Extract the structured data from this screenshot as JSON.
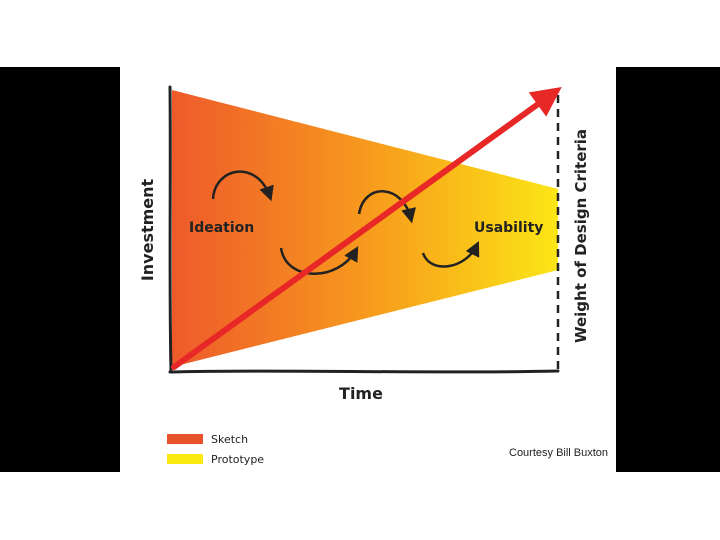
{
  "diagram": {
    "y_axis_label": "Investment",
    "x_axis_label": "Time",
    "right_axis_label": "Weight of Design Criteria",
    "phase_start_label": "Ideation",
    "phase_end_label": "Usability",
    "legend": [
      {
        "label": "Sketch",
        "color": "#e8532e"
      },
      {
        "label": "Prototype",
        "color": "#fbe90f"
      }
    ],
    "colors": {
      "gradient_start": "#ee5a2b",
      "gradient_mid": "#f8a01c",
      "gradient_end": "#fbe616",
      "arrow": "#e82727",
      "ink": "#222222"
    }
  },
  "credit": "Courtesy Bill Buxton"
}
